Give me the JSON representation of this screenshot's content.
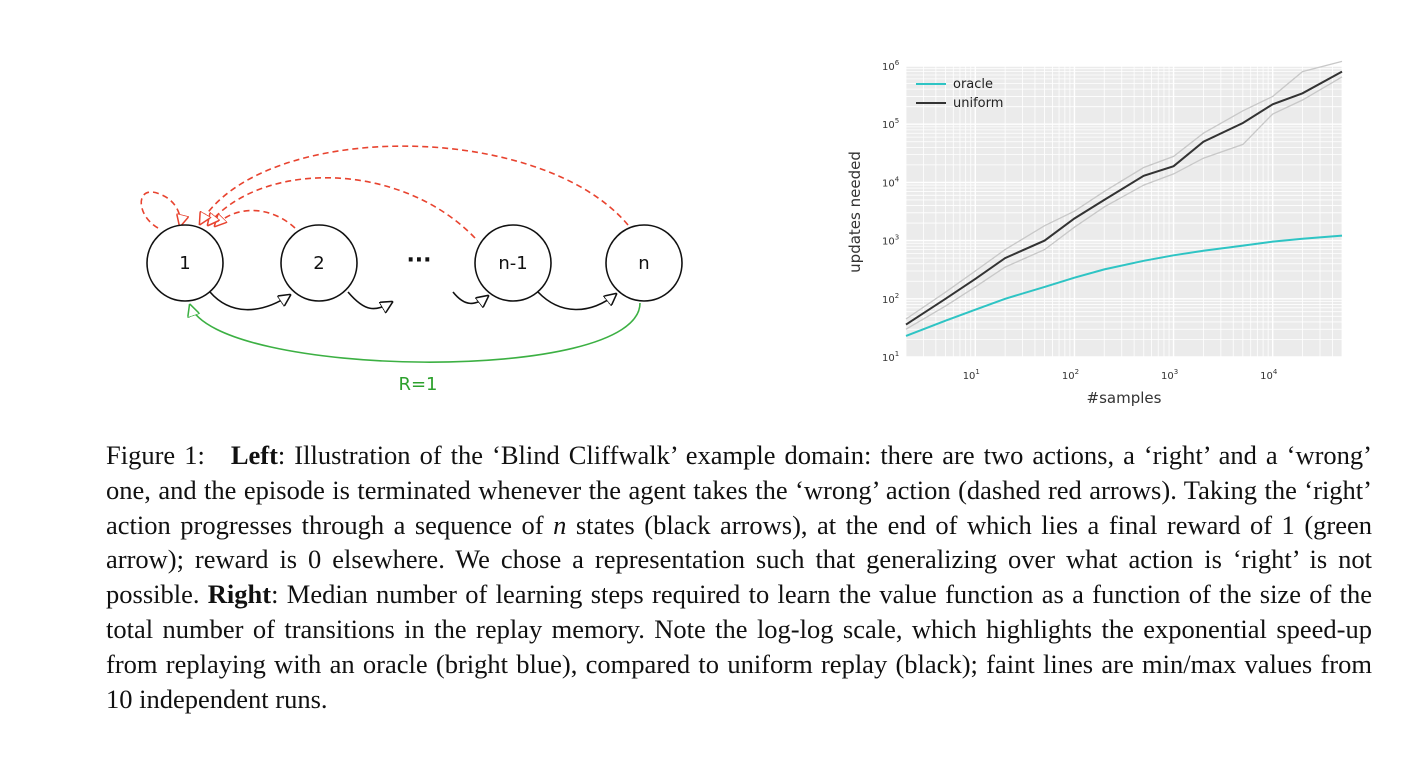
{
  "diagram": {
    "states": [
      {
        "id": "s1",
        "label": "1"
      },
      {
        "id": "s2",
        "label": "2"
      },
      {
        "id": "sn1",
        "label": "n-1"
      },
      {
        "id": "sn",
        "label": "n"
      }
    ],
    "ellipsis": "···",
    "reward_label": "R=1",
    "colors": {
      "wrong_arrow": "#e8432f",
      "reward_arrow": "#3cb043",
      "right_arrow": "#111111"
    }
  },
  "chart_data": {
    "type": "line",
    "xscale": "log",
    "yscale": "log",
    "xlim": [
      2,
      50000
    ],
    "ylim": [
      10,
      1000000
    ],
    "xlabel": "#samples",
    "ylabel": "updates needed",
    "xticks": [
      {
        "value": 10,
        "label": "10",
        "exp": "1"
      },
      {
        "value": 100,
        "label": "10",
        "exp": "2"
      },
      {
        "value": 1000,
        "label": "10",
        "exp": "3"
      },
      {
        "value": 10000,
        "label": "10",
        "exp": "4"
      }
    ],
    "yticks": [
      {
        "value": 10,
        "label": "10",
        "exp": "1"
      },
      {
        "value": 100,
        "label": "10",
        "exp": "2"
      },
      {
        "value": 1000,
        "label": "10",
        "exp": "3"
      },
      {
        "value": 10000,
        "label": "10",
        "exp": "4"
      },
      {
        "value": 100000,
        "label": "10",
        "exp": "5"
      },
      {
        "value": 1000000,
        "label": "10",
        "exp": "6"
      }
    ],
    "grid": true,
    "legend": "top-left",
    "series": [
      {
        "name": "oracle",
        "color": "#2ec4c4",
        "x": [
          2,
          5,
          10,
          20,
          50,
          100,
          200,
          500,
          1000,
          2000,
          5000,
          10000,
          20000,
          50000
        ],
        "y": [
          23,
          42,
          65,
          100,
          160,
          230,
          320,
          450,
          560,
          670,
          820,
          960,
          1080,
          1220
        ]
      },
      {
        "name": "uniform",
        "color": "#333333",
        "x": [
          2,
          5,
          10,
          20,
          50,
          100,
          200,
          500,
          1000,
          2000,
          5000,
          10000,
          20000,
          50000
        ],
        "y": [
          36,
          100,
          220,
          500,
          1000,
          2400,
          5000,
          13000,
          19000,
          50000,
          105000,
          220000,
          340000,
          800000
        ]
      }
    ],
    "bands": [
      {
        "series": "uniform",
        "x": [
          2,
          5,
          10,
          20,
          50,
          100,
          200,
          500,
          1000,
          2000,
          5000,
          10000,
          20000,
          50000
        ],
        "min": [
          30,
          75,
          160,
          350,
          700,
          1700,
          3800,
          9000,
          14000,
          26000,
          45000,
          150000,
          260000,
          650000
        ],
        "max": [
          45,
          130,
          300,
          700,
          1800,
          3200,
          7000,
          18000,
          28000,
          70000,
          170000,
          300000,
          800000,
          1200000
        ]
      }
    ]
  },
  "caption": {
    "figure_number": "Figure 1:",
    "left_bold": "Left",
    "part1": ": Illustration of the ‘Blind Cliffwalk’ example domain: there are two actions, a ‘right’ and a ‘wrong’ one, and the episode is terminated whenever the agent takes the ‘wrong’ action (dashed red arrows). Taking the ‘right’ action progresses through a sequence of ",
    "italic_n": "n",
    "part2": " states (black arrows), at the end of which lies a final reward of 1 (green arrow); reward is 0 elsewhere. We chose a representation such that generalizing over what action is ‘right’ is not possible. ",
    "right_bold": "Right",
    "part3": ": Median number of learning steps required to learn the value function as a function of the size of the total number of transitions in the replay memory. Note the log-log scale, which highlights the exponential speed-up from replaying with an oracle (bright blue), compared to uniform replay (black); faint lines are min/max values from 10 independent runs."
  }
}
